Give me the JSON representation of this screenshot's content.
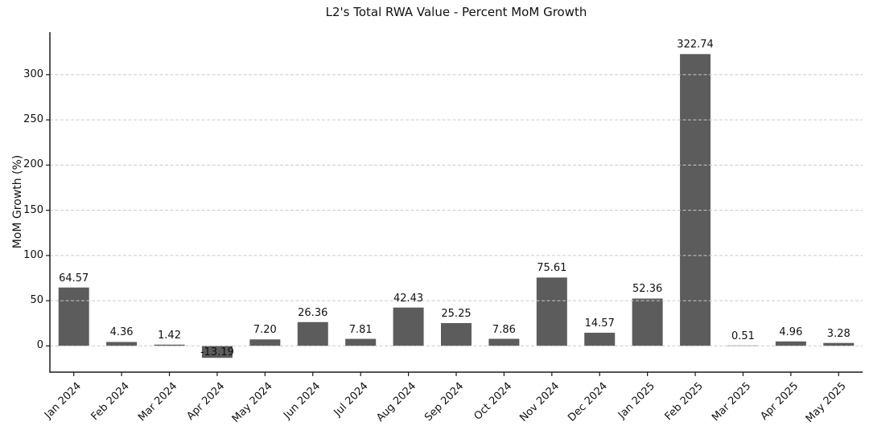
{
  "chart_data": {
    "type": "bar",
    "title": "L2's Total RWA Value - Percent MoM Growth",
    "xlabel": "",
    "ylabel": "MoM Growth (%)",
    "categories": [
      "Jan 2024",
      "Feb 2024",
      "Mar 2024",
      "Apr 2024",
      "May 2024",
      "Jun 2024",
      "Jul 2024",
      "Aug 2024",
      "Sep 2024",
      "Oct 2024",
      "Nov 2024",
      "Dec 2024",
      "Jan 2025",
      "Feb 2025",
      "Mar 2025",
      "Apr 2025",
      "May 2025"
    ],
    "values": [
      64.57,
      4.36,
      1.42,
      -13.19,
      7.2,
      26.36,
      7.81,
      42.43,
      25.25,
      7.86,
      75.61,
      14.57,
      52.36,
      322.74,
      0.51,
      4.96,
      3.28
    ],
    "yticks": [
      0,
      50,
      100,
      150,
      200,
      250,
      300
    ],
    "ylim": [
      -29,
      347
    ],
    "grid": "horizontal-dashed",
    "gridlines_over_bars": true,
    "legend": "none",
    "bar_color": "#5c5c5c",
    "grid_color": "#c9c9c9",
    "axis_color": "#1a1a1a",
    "text_color": "#111111",
    "background": "#ffffff"
  }
}
